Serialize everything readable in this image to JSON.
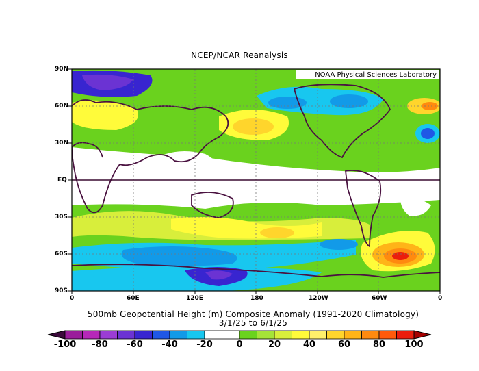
{
  "header": {
    "title": "NCEP/NCAR Reanalysis"
  },
  "credit": "NOAA Physical Sciences Laboratory",
  "map": {
    "projection": "equirectangular",
    "lon_range": [
      0,
      360
    ],
    "lat_range": [
      -90,
      90
    ],
    "lat_ticks": [
      "90N",
      "60N",
      "30N",
      "EQ",
      "30S",
      "60S",
      "90S"
    ],
    "lon_ticks": [
      "0",
      "60E",
      "120E",
      "180",
      "120W",
      "60W",
      "0"
    ],
    "gridlines": "dotted",
    "equator_line": true
  },
  "caption": {
    "line1": "500mb Geopotential Height (m) Composite Anomaly (1991-2020 Climatology)",
    "line2": "3/1/25   to 6/1/25"
  },
  "colorbar": {
    "labels": [
      "-100",
      "-80",
      "-60",
      "-40",
      "-20",
      "0",
      "20",
      "40",
      "60",
      "80",
      "100"
    ],
    "colors": [
      "#3c0a3c",
      "#9a1d9b",
      "#b628b8",
      "#9b3cd4",
      "#6b33d3",
      "#3825d0",
      "#1f57e6",
      "#129ae8",
      "#18c7ef",
      "#ffffff",
      "#ffffff",
      "#6ad21e",
      "#a5e338",
      "#d8ee3b",
      "#fffb3a",
      "#fff06a",
      "#ffd52c",
      "#ffb418",
      "#ff8a0f",
      "#ff5a0a",
      "#eb1d0c",
      "#a50000"
    ]
  }
}
